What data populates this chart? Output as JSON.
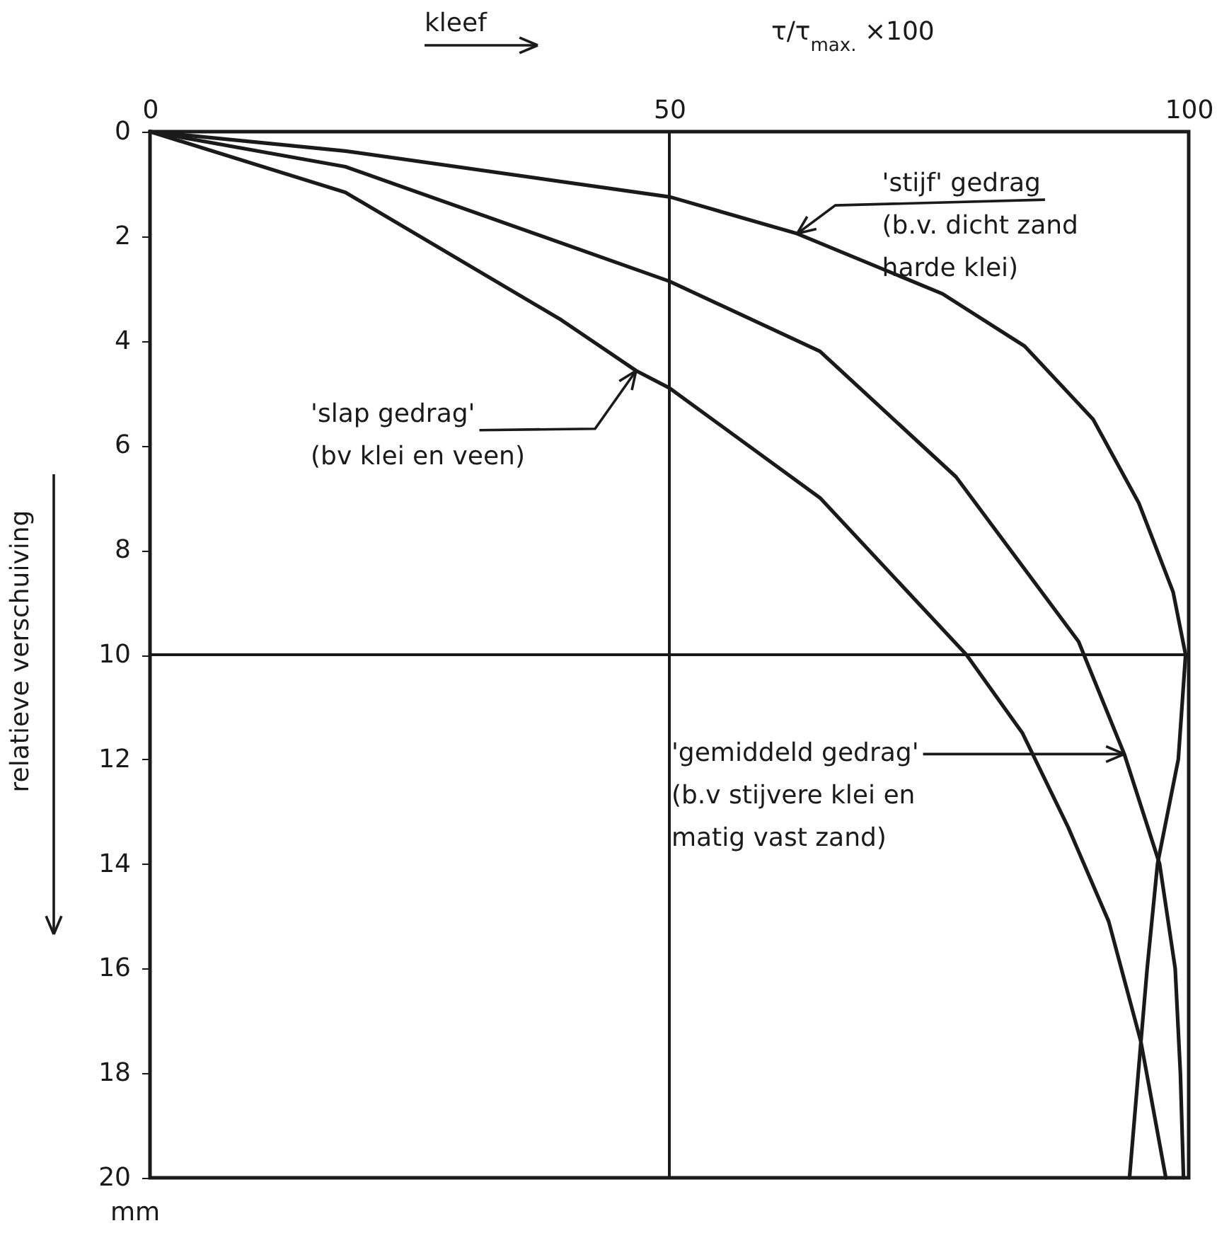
{
  "chart_data": {
    "type": "line",
    "xlabel": "τ/τ$_{max.}$ ×100",
    "ylabel": "relatieve verschuiving",
    "xlim": [
      0,
      100
    ],
    "xticks": [
      0,
      50,
      100
    ],
    "ylim": [
      20,
      0
    ],
    "yticks": [
      0,
      2,
      4,
      6,
      8,
      10,
      12,
      14,
      16,
      18,
      20
    ],
    "grid": false,
    "legend": false,
    "marker": "none",
    "line_style": "solid",
    "series": [
      {
        "color": "#1a1a1a",
        "x": [
          0,
          18.8,
          50.1,
          62.3,
          76.3,
          84.2,
          90.8,
          95.2,
          98.5,
          99.7,
          99.0,
          97.0,
          96.0,
          95.4,
          94.3
        ],
        "values": [
          0,
          0.37,
          1.25,
          1.95,
          3.1,
          4.1,
          5.5,
          7.1,
          8.8,
          10,
          12,
          14,
          16,
          17.4,
          20
        ]
      },
      {
        "color": "#1a1a1a",
        "x": [
          0,
          18.8,
          50,
          64.5,
          77.6,
          89.4,
          93.8,
          97.2,
          98.7,
          99.2,
          99.5
        ],
        "values": [
          0,
          0.67,
          2.86,
          4.2,
          6.6,
          9.75,
          11.9,
          14,
          16,
          18,
          20
        ]
      },
      {
        "color": "#1a1a1a",
        "x": [
          0,
          18.8,
          39.6,
          46.8,
          50,
          64.5,
          78.6,
          84.0,
          88.4,
          92.3,
          95.4,
          97.8
        ],
        "values": [
          0,
          1.16,
          3.6,
          4.57,
          4.9,
          7.0,
          10,
          11.5,
          13.3,
          15.1,
          17.4,
          20
        ]
      }
    ],
    "ref_lines": [
      {
        "axis": "x",
        "value": 50
      },
      {
        "axis": "y",
        "value": 10
      }
    ],
    "annotations": [
      {
        "text": "'stijf' gedrag\n(b.v. dicht zand\nharde klei)",
        "x": 62.3,
        "y": 1.95
      },
      {
        "text": "'slap gedrag'\n(bv klei en veen)",
        "x": 46.8,
        "y": 4.57
      },
      {
        "text": "'gemiddeld gedrag'\n(b.v stijvere klei en\nmatig vast zand)",
        "x": 93.8,
        "y": 11.9
      },
      "kleef",
      "mm"
    ]
  }
}
